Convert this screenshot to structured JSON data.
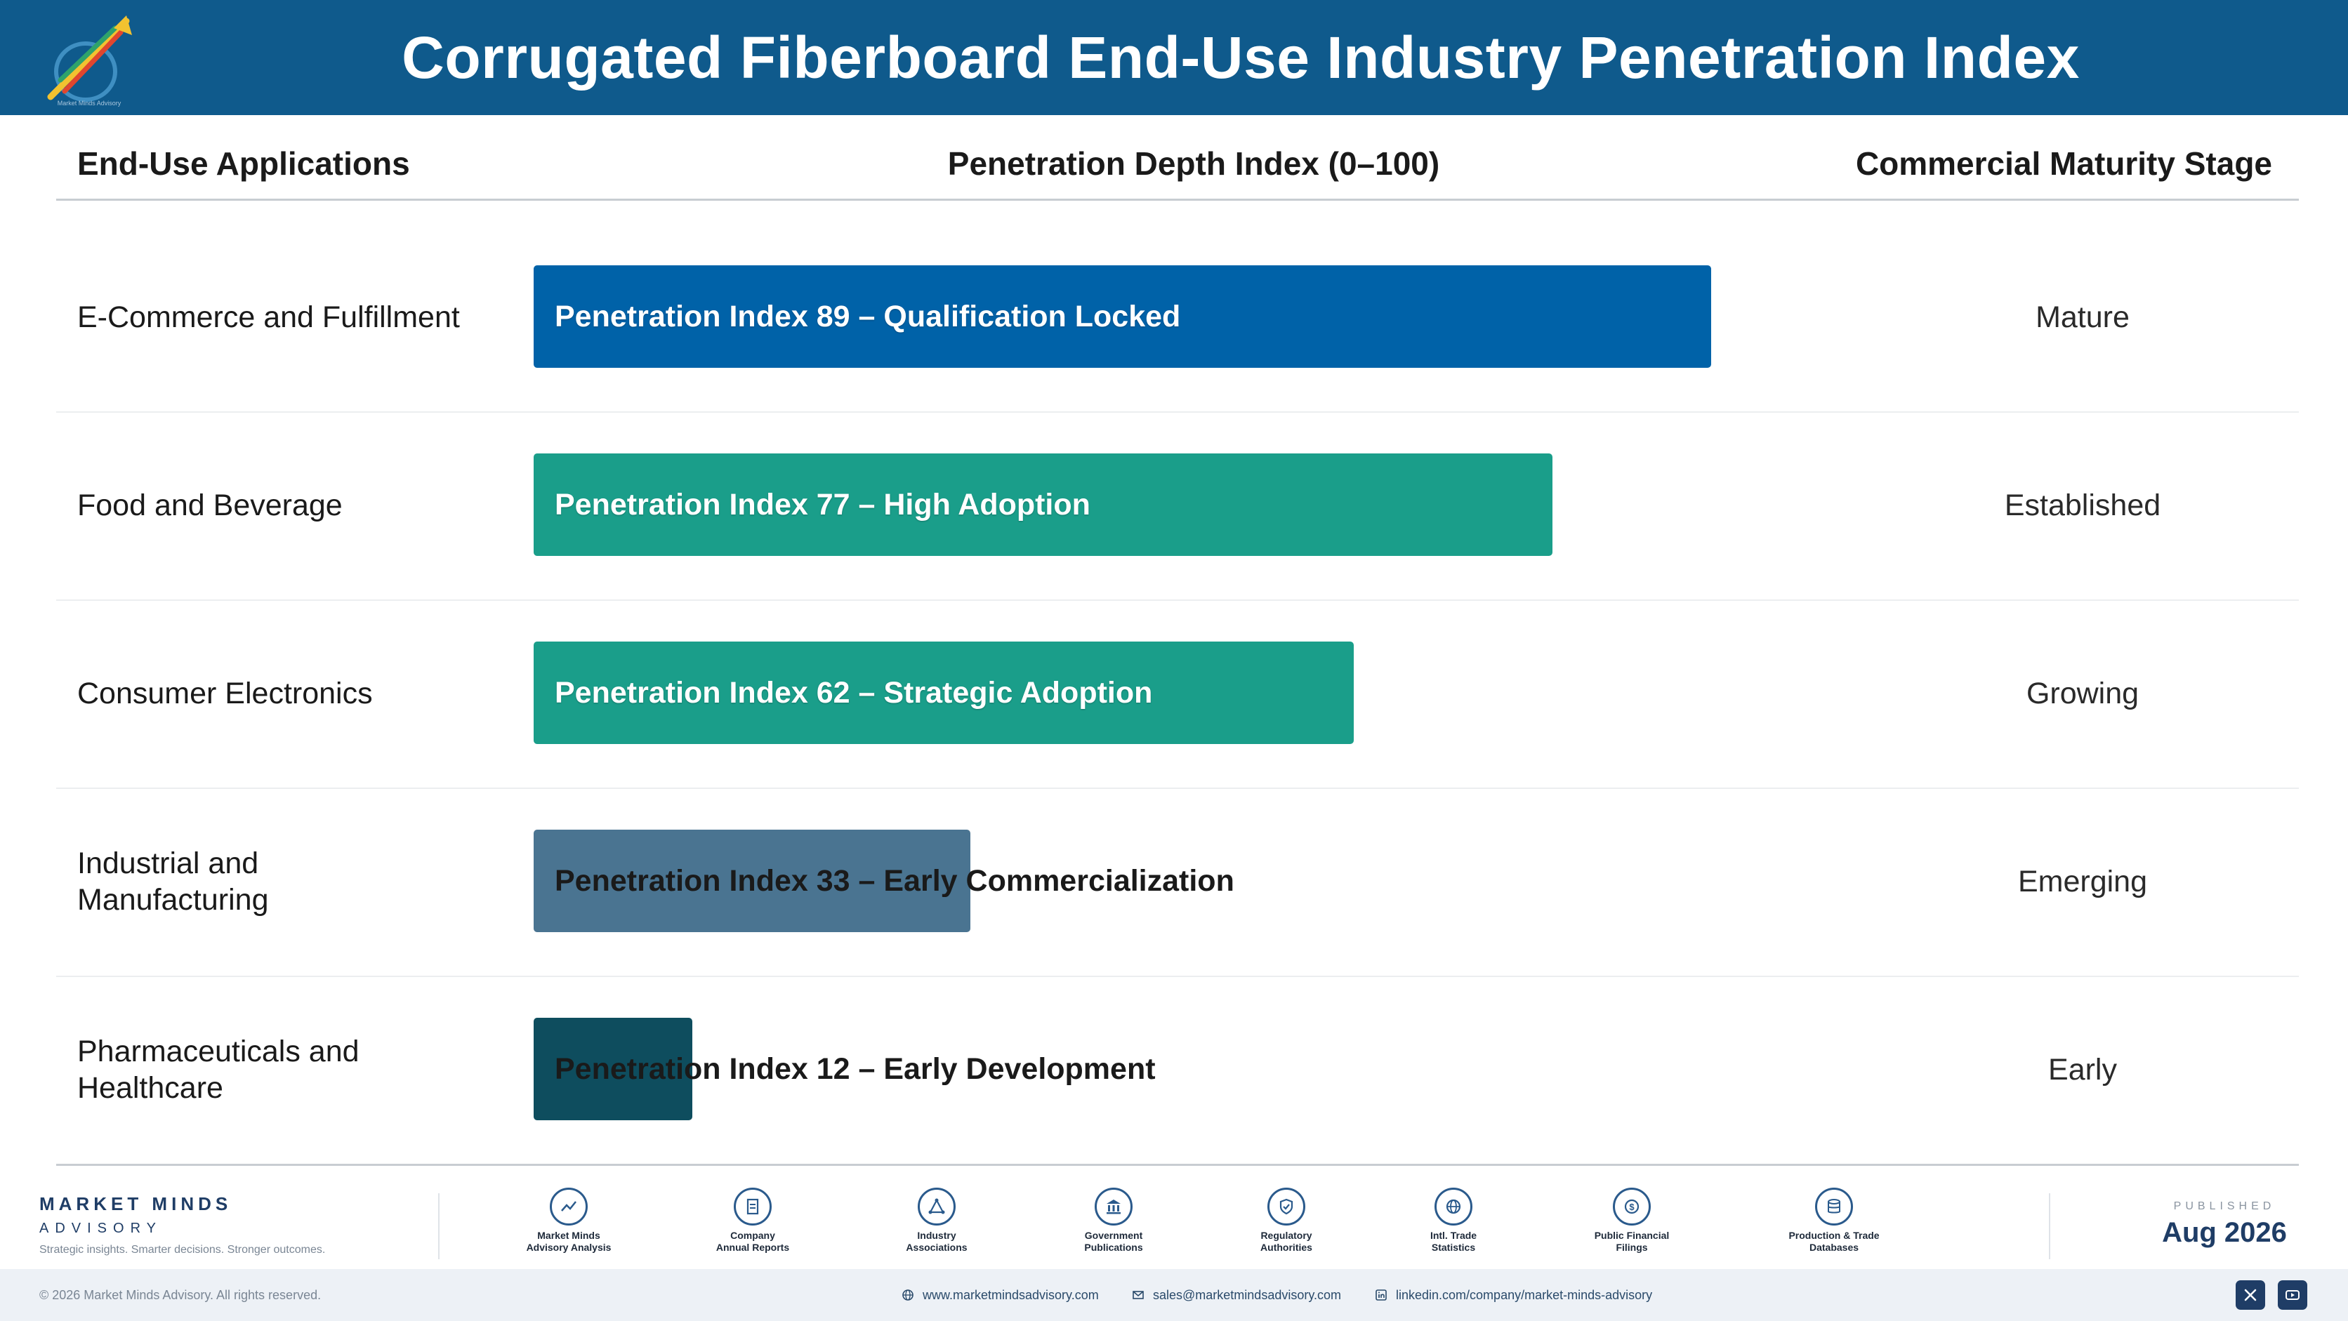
{
  "header": {
    "title": "Corrugated Fiberboard End-Use Industry Penetration Index",
    "logo_text": "Market Minds Advisory"
  },
  "columns": {
    "applications": "End-Use Applications",
    "index": "Penetration Depth Index (0–100)",
    "stage": "Commercial Maturity Stage"
  },
  "chart_data": {
    "type": "bar",
    "orientation": "horizontal",
    "xlabel": "Penetration Depth Index (0–100)",
    "xlim": [
      0,
      100
    ],
    "categories": [
      "E-Commerce and Fulfillment",
      "Food and Beverage",
      "Consumer Electronics",
      "Industrial and Manufacturing",
      "Pharmaceuticals and Healthcare"
    ],
    "values": [
      89,
      77,
      62,
      33,
      12
    ],
    "bar_labels": [
      "Penetration Index 89 – Qualification Locked",
      "Penetration Index 77 – High Adoption",
      "Penetration Index 62 – Strategic Adoption",
      "Penetration Index 33 – Early Commercialization",
      "Penetration Index 12 – Early Development"
    ],
    "maturity_stage": [
      "Mature",
      "Established",
      "Growing",
      "Emerging",
      "Early"
    ],
    "colors": [
      "#0062a8",
      "#1a9e8a",
      "#1a9e8a",
      "#4a7491",
      "#0e4d5e"
    ],
    "grid": false
  },
  "rows": [
    {
      "label_lines": [
        "E-Commerce and Fulfillment"
      ]
    },
    {
      "label_lines": [
        "Food and Beverage"
      ]
    },
    {
      "label_lines": [
        "Consumer Electronics"
      ]
    },
    {
      "label_lines": [
        "Industrial and",
        "Manufacturing"
      ]
    },
    {
      "label_lines": [
        "Pharmaceuticals and",
        "Healthcare"
      ]
    }
  ],
  "footer": {
    "brand_name": "MARKET MINDS",
    "brand_sub": "ADVISORY",
    "tagline": "Strategic insights. Smarter decisions. Stronger outcomes.",
    "sources": [
      {
        "line1": "Market Minds",
        "line2": "Advisory Analysis",
        "icon": "chart-line-icon"
      },
      {
        "line1": "Company",
        "line2": "Annual Reports",
        "icon": "document-icon"
      },
      {
        "line1": "Industry",
        "line2": "Associations",
        "icon": "network-icon"
      },
      {
        "line1": "Government",
        "line2": "Publications",
        "icon": "building-icon"
      },
      {
        "line1": "Regulatory",
        "line2": "Authorities",
        "icon": "shield-check-icon"
      },
      {
        "line1": "Intl. Trade",
        "line2": "Statistics",
        "icon": "globe-icon"
      },
      {
        "line1": "Public Financial",
        "line2": "Filings",
        "icon": "dollar-coin-icon"
      },
      {
        "line1": "Production & Trade",
        "line2": "Databases",
        "icon": "database-icon"
      }
    ],
    "published_label": "PUBLISHED",
    "published_date": "Aug 2026",
    "copyright": "© 2026 Market Minds Advisory. All rights reserved.",
    "website": "www.marketmindsadvisory.com",
    "email": "sales@marketmindsadvisory.com",
    "linkedin": "linkedin.com/company/market-minds-advisory",
    "social": [
      "x-icon",
      "youtube-icon"
    ]
  }
}
